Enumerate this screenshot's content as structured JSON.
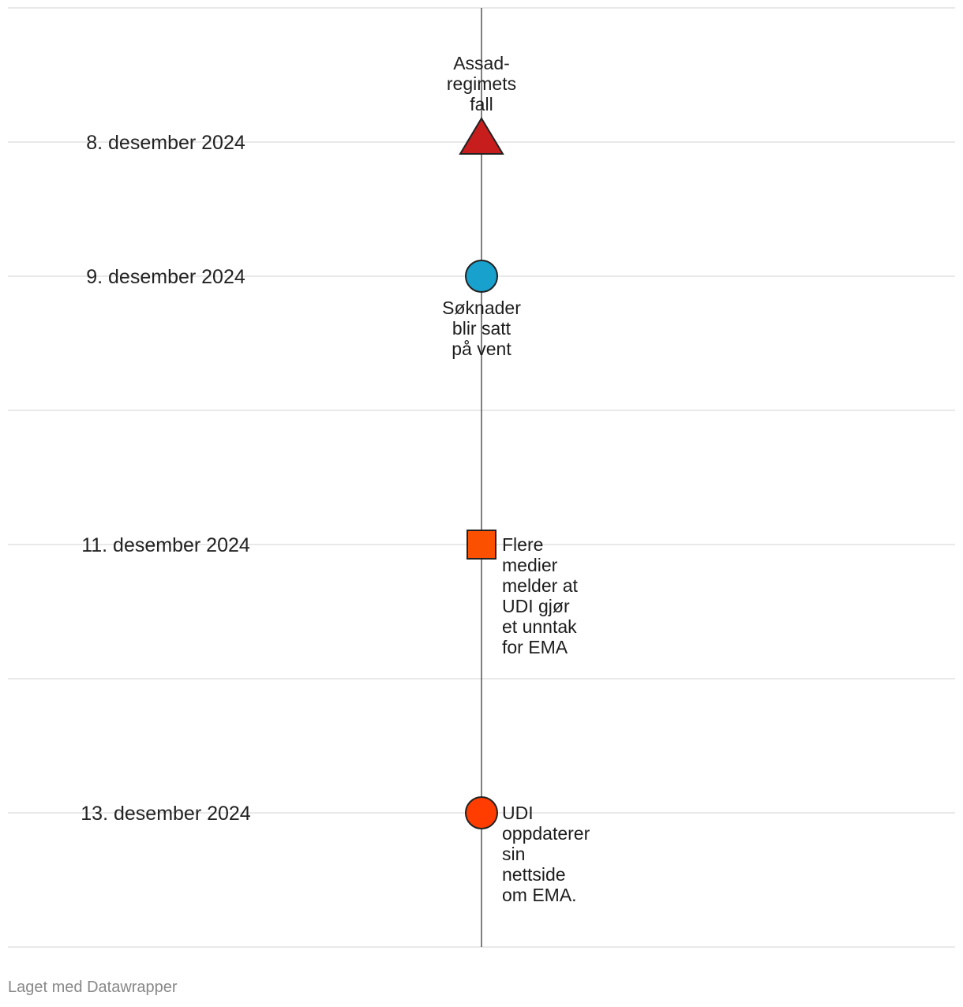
{
  "chart_data": {
    "type": "timeline",
    "y_axis": {
      "type": "date",
      "range": [
        "2024-12-07",
        "2024-12-14"
      ],
      "grid": true
    },
    "date_labels": [
      {
        "date": "2024-12-08",
        "label": "8. desember 2024"
      },
      {
        "date": "2024-12-09",
        "label": "9. desember 2024"
      },
      {
        "date": "2024-12-11",
        "label": "11. desember 2024"
      },
      {
        "date": "2024-12-13",
        "label": "13. desember 2024"
      }
    ],
    "events": [
      {
        "date": "2024-12-08",
        "shape": "triangle",
        "color": "#c71e1d",
        "label": [
          "Assad-",
          "regimets",
          "fall"
        ],
        "label_position": "above"
      },
      {
        "date": "2024-12-09",
        "shape": "circle",
        "color": "#18a1cd",
        "label": [
          "Søknader",
          "blir satt",
          "på vent"
        ],
        "label_position": "below"
      },
      {
        "date": "2024-12-11",
        "shape": "square",
        "color": "#fa5000",
        "label": [
          "Flere",
          "medier",
          "melder at",
          "UDI gjør",
          "et unntak",
          "for EMA"
        ],
        "label_position": "right"
      },
      {
        "date": "2024-12-13",
        "shape": "circle",
        "color": "#ff3d00",
        "label": [
          "UDI",
          "oppdaterer",
          "sin",
          "nettside",
          "om EMA."
        ],
        "label_position": "right"
      }
    ]
  },
  "footer": {
    "text": "Laget med Datawrapper"
  }
}
